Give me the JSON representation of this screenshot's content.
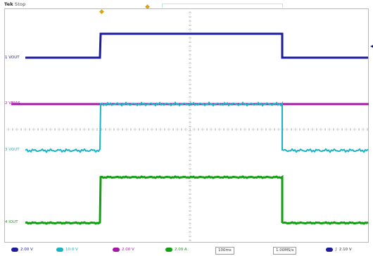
{
  "header": {
    "brand": "Tek",
    "run_state": "Stop"
  },
  "channels": [
    {
      "id": "1",
      "name": "VOUT",
      "label": "1 VOUT",
      "color": "#1c1c9e"
    },
    {
      "id": "2",
      "name": "VBIAS",
      "label": "2 VBIAS",
      "color": "#a418a4"
    },
    {
      "id": "3",
      "name": "VOUT",
      "label": "3 VOUT",
      "color": "#18b4c4"
    },
    {
      "id": "4",
      "name": "IOUT",
      "label": "4 IOUT",
      "color": "#10a010"
    }
  ],
  "footer": {
    "ch1_scale": "2.00 V",
    "ch2_scale": "10.0 V",
    "ch3_scale": "2.00 V",
    "ch4_scale": "2.00 A",
    "timebase": "100ms",
    "sample_rate": "1.00MS/s",
    "trigger_level": "2.10 V"
  }
}
